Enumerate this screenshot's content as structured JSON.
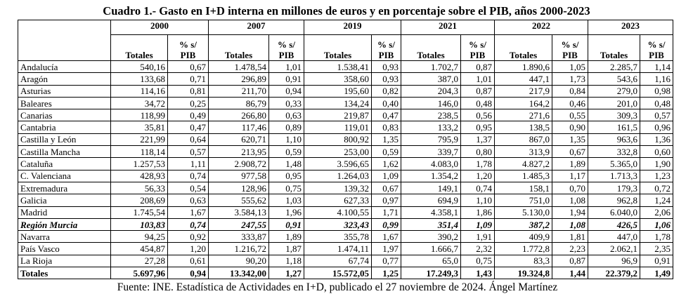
{
  "title": "Cuadro 1.- Gasto en I+D interna en millones de euros y en porcentaje sobre el PIB, años 2000-2023",
  "table": {
    "years": [
      "2000",
      "2007",
      "2019",
      "2021",
      "2022",
      "2023"
    ],
    "subheaders": [
      "Totales",
      "% s/ PIB",
      "Totales",
      "% s/ PIB",
      "Totales",
      "% s/ PIB",
      "Totales",
      "% s/ PIB",
      "Totales",
      "% s/ PIB",
      "Totales",
      "% s/ PIB"
    ],
    "rows": [
      [
        "Andalucía",
        "540,16",
        "0,67",
        "1.478,54",
        "1,01",
        "1.538,41",
        "0,93",
        "1.702,7",
        "0,87",
        "1.890,6",
        "1,05",
        "2.285,7",
        "1,14"
      ],
      [
        "Aragón",
        "133,68",
        "0,71",
        "296,89",
        "0,91",
        "358,60",
        "0,93",
        "387,0",
        "1,01",
        "447,1",
        "1,73",
        "543,6",
        "1,16"
      ],
      [
        "Asturias",
        "114,16",
        "0,81",
        "211,70",
        "0,94",
        "195,60",
        "0,82",
        "204,3",
        "0,87",
        "217,9",
        "0,84",
        "279,0",
        "0,98"
      ],
      [
        "Baleares",
        "34,72",
        "0,25",
        "86,79",
        "0,33",
        "134,24",
        "0,40",
        "146,0",
        "0,48",
        "164,2",
        "0,46",
        "201,0",
        "0,48"
      ],
      [
        "Canarias",
        "118,99",
        "0,49",
        "266,80",
        "0,63",
        "219,87",
        "0,47",
        "238,5",
        "0,56",
        "271,6",
        "0,55",
        "309,3",
        "0,57"
      ],
      [
        "Cantabria",
        "35,81",
        "0,47",
        "117,46",
        "0,89",
        "119,01",
        "0,83",
        "133,2",
        "0,95",
        "138,5",
        "0,90",
        "161,5",
        "0,96"
      ],
      [
        "Castilla y León",
        "221,99",
        "0,64",
        "620,71",
        "1,10",
        "800,92",
        "1,35",
        "795,9",
        "1,37",
        "867,0",
        "1,35",
        "963,6",
        "1,36"
      ],
      [
        "Castilla Mancha",
        "118,14",
        "0,57",
        "213,95",
        "0,59",
        "253,00",
        "0,59",
        "339,7",
        "0,80",
        "313,9",
        "0,67",
        "332,8",
        "0,60"
      ],
      [
        "Cataluña",
        "1.257,53",
        "1,11",
        "2.908,72",
        "1,48",
        "3.596,65",
        "1,62",
        "4.083,0",
        "1,78",
        "4.827,2",
        "1,89",
        "5.365,0",
        "1,90"
      ],
      [
        "C. Valenciana",
        "428,93",
        "0,74",
        "977,58",
        "0,95",
        "1.264,03",
        "1,09",
        "1.354,2",
        "1,20",
        "1.485,3",
        "1,17",
        "1.713,3",
        "1,23"
      ],
      [
        "Extremadura",
        "56,33",
        "0,54",
        "128,96",
        "0,75",
        "139,32",
        "0,67",
        "149,1",
        "0,74",
        "158,1",
        "0,70",
        "179,3",
        "0,72"
      ],
      [
        "Galicia",
        "208,69",
        "0,63",
        "555,62",
        "1,03",
        "627,33",
        "0,97",
        "694,9",
        "1,10",
        "751,0",
        "1,08",
        "962,8",
        "1,24"
      ],
      [
        "Madrid",
        "1.745,54",
        "1,67",
        "3.584,13",
        "1,96",
        "4.100,55",
        "1,71",
        "4.358,1",
        "1,86",
        "5.130,0",
        "1,94",
        "6.040,0",
        "2,06"
      ],
      [
        "Región Murcia",
        "103,83",
        "0,74",
        "247,55",
        "0,91",
        "323,43",
        "0,99",
        "351,4",
        "1,09",
        "387,2",
        "1,08",
        "426,5",
        "1,06"
      ],
      [
        "Navarra",
        "94,25",
        "0,92",
        "333,87",
        "1,89",
        "355,78",
        "1,67",
        "390,2",
        "1,91",
        "409,9",
        "1,81",
        "447,0",
        "1,78"
      ],
      [
        "País Vasco",
        "454,87",
        "1,20",
        "1.216,72",
        "1,87",
        "1.474,11",
        "1,97",
        "1.666,7",
        "2,32",
        "1.772,8",
        "2,23",
        "2.062,1",
        "2,35"
      ],
      [
        "La Rioja",
        "27,28",
        "0,61",
        "90,20",
        "1,18",
        "67,74",
        "0,77",
        "65,0",
        "0,75",
        "83,3",
        "0,87",
        "96,9",
        "0,91"
      ],
      [
        "Totales",
        "5.697,96",
        "0,94",
        "13.342,00",
        "1,27",
        "15.572,05",
        "1,25",
        "17.249,3",
        "1,43",
        "19.324,8",
        "1,44",
        "22.379,2",
        "1,49"
      ]
    ]
  },
  "footer": "Fuente: INE. Estadística de Actividades en I+D, publicado el 27 noviembre de 2024. Ángel Martínez"
}
